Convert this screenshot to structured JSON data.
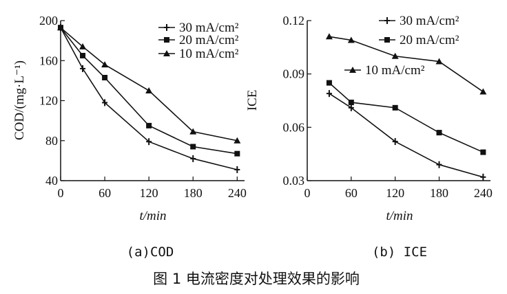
{
  "figure": {
    "caption_a": "(a)COD",
    "caption_b": "(b) ICE",
    "title": "图 1   电流密度对处理效果的影响"
  },
  "chart_data": [
    {
      "type": "line",
      "xlabel": "t/min",
      "ylabel": "COD/(mg·L⁻¹)",
      "xlim": [
        0,
        250
      ],
      "ylim": [
        40,
        200
      ],
      "xticks": [
        0,
        60,
        120,
        180,
        240
      ],
      "yticks": [
        40,
        80,
        120,
        160,
        200
      ],
      "xtick_labels": [
        "0",
        "60",
        "120",
        "180",
        "240"
      ],
      "ytick_labels": [
        "40",
        "80",
        "120",
        "160",
        "200"
      ],
      "legend_position": "top-right",
      "series": [
        {
          "name": "30 mA/cm²",
          "marker": "cross",
          "x": [
            0,
            30,
            60,
            120,
            180,
            240
          ],
          "y": [
            193,
            152,
            118,
            79,
            62,
            51
          ]
        },
        {
          "name": "20 mA/cm²",
          "marker": "square",
          "x": [
            0,
            30,
            60,
            120,
            180,
            240
          ],
          "y": [
            193,
            165,
            143,
            95,
            74,
            67
          ]
        },
        {
          "name": "10 mA/cm²",
          "marker": "triangle",
          "x": [
            0,
            30,
            60,
            120,
            180,
            240
          ],
          "y": [
            193,
            174,
            156,
            130,
            89,
            80
          ]
        }
      ]
    },
    {
      "type": "line",
      "xlabel": "t/min",
      "ylabel": "ICE",
      "xlim": [
        0,
        250
      ],
      "ylim": [
        0.03,
        0.12
      ],
      "xticks": [
        0,
        60,
        120,
        180,
        240
      ],
      "yticks": [
        0.03,
        0.06,
        0.09,
        0.12
      ],
      "xtick_labels": [
        "0",
        "60",
        "120",
        "180",
        "240"
      ],
      "ytick_labels": [
        "0.03",
        "0.06",
        "0.09",
        "0.12"
      ],
      "legend_position": "top-right",
      "series": [
        {
          "name": "30 mA/cm²",
          "marker": "cross",
          "x": [
            30,
            60,
            120,
            180,
            240
          ],
          "y": [
            0.079,
            0.071,
            0.052,
            0.039,
            0.032
          ]
        },
        {
          "name": "20 mA/cm²",
          "marker": "square",
          "x": [
            30,
            60,
            120,
            180,
            240
          ],
          "y": [
            0.085,
            0.074,
            0.071,
            0.057,
            0.046
          ]
        },
        {
          "name": "10 mA/cm²",
          "marker": "triangle",
          "x": [
            30,
            60,
            120,
            180,
            240
          ],
          "y": [
            0.111,
            0.109,
            0.1,
            0.097,
            0.08
          ]
        }
      ]
    }
  ]
}
